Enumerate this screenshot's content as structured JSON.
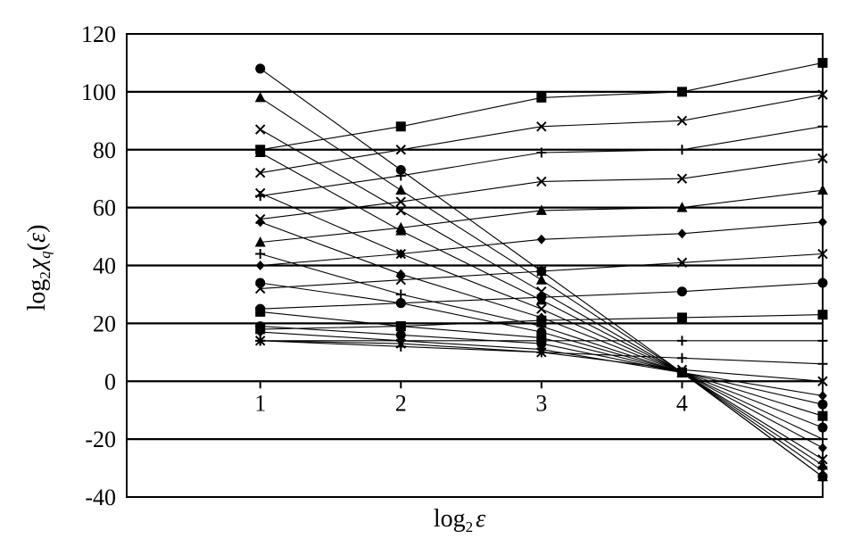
{
  "chart_data": {
    "type": "line",
    "x_label": {
      "prefix": "log",
      "sub": "2",
      "var": "ε"
    },
    "y_label": {
      "prefix": "log",
      "sub": "2",
      "chi": "χ",
      "q": "q",
      "open": "(",
      "var": "ε",
      "close": ")"
    },
    "x_ticks": [
      "1",
      "2",
      "3",
      "4"
    ],
    "y_ticks": [
      "-40",
      "-20",
      "0",
      "20",
      "40",
      "60",
      "80",
      "100",
      "120"
    ],
    "xlim": [
      0.05,
      5.0
    ],
    "ylim": [
      -40,
      120
    ],
    "grid": {
      "horizontal": true,
      "vertical": false
    },
    "x": [
      1,
      2,
      3,
      4,
      5
    ],
    "series": [
      {
        "marker": "square",
        "values": [
          80,
          88,
          98,
          100,
          110
        ]
      },
      {
        "marker": "x",
        "values": [
          72,
          80,
          88,
          90,
          99
        ]
      },
      {
        "marker": "plus",
        "values": [
          64,
          71,
          79,
          80,
          88
        ]
      },
      {
        "marker": "x",
        "values": [
          56,
          62,
          69,
          70,
          77
        ]
      },
      {
        "marker": "triangle",
        "values": [
          48,
          53,
          59,
          60,
          66
        ]
      },
      {
        "marker": "diamond",
        "values": [
          40,
          44,
          49,
          51,
          55
        ]
      },
      {
        "marker": "x",
        "values": [
          32,
          35,
          38,
          41,
          44
        ]
      },
      {
        "marker": "circle",
        "values": [
          25,
          27,
          29,
          31,
          34
        ]
      },
      {
        "marker": "square",
        "values": [
          18,
          19,
          21,
          22,
          23
        ]
      },
      {
        "marker": "plus",
        "values": [
          14,
          14,
          14,
          14,
          14
        ]
      },
      {
        "marker": "plus",
        "values": [
          14,
          12,
          10,
          8,
          6
        ]
      },
      {
        "marker": "x",
        "values": [
          14,
          13,
          10,
          4,
          0
        ]
      },
      {
        "marker": "diamond",
        "values": [
          17,
          14,
          11,
          3,
          -5
        ]
      },
      {
        "marker": "circle",
        "values": [
          19,
          16,
          13,
          3,
          -8
        ]
      },
      {
        "marker": "square",
        "values": [
          24,
          19,
          15,
          3,
          -12
        ]
      },
      {
        "marker": "circle",
        "values": [
          34,
          27,
          17,
          3,
          -16
        ]
      },
      {
        "marker": "plus",
        "values": [
          44,
          30,
          19,
          3,
          -20
        ]
      },
      {
        "marker": "diamond",
        "values": [
          55,
          37,
          22,
          3,
          -23
        ]
      },
      {
        "marker": "x",
        "values": [
          65,
          44,
          25,
          3,
          -27
        ]
      },
      {
        "marker": "triangle",
        "values": [
          79,
          52,
          28,
          3,
          -29
        ]
      },
      {
        "marker": "x",
        "values": [
          87,
          59,
          31,
          3,
          -31
        ]
      },
      {
        "marker": "triangle",
        "values": [
          98,
          66,
          35,
          3,
          -33
        ]
      },
      {
        "marker": "circle",
        "values": [
          108,
          73,
          38,
          3,
          -33
        ]
      }
    ]
  }
}
